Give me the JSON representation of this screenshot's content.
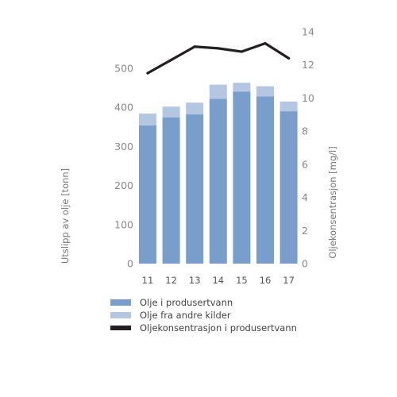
{
  "chart_data": {
    "type": "bar",
    "categories": [
      "11",
      "12",
      "13",
      "14",
      "15",
      "16",
      "17"
    ],
    "series": [
      {
        "name": "Olje i produsertvann",
        "kind": "bar",
        "axis": "left",
        "color": "#7a9ecb",
        "values": [
          354,
          374,
          382,
          422,
          440,
          428,
          390
        ]
      },
      {
        "name": "Olje fra andre kilder",
        "kind": "bar",
        "axis": "left",
        "color": "#b3c6e2",
        "values": [
          30,
          28,
          30,
          36,
          23,
          26,
          25
        ]
      },
      {
        "name": "Oljekonsentrasjon i produsertvann",
        "kind": "line",
        "axis": "right",
        "color": "#231f20",
        "values": [
          11.5,
          12.3,
          13.1,
          13.0,
          12.8,
          13.3,
          12.4
        ]
      }
    ],
    "ylabel": "Utslipp av olje [tonn]",
    "ylabel_right": "Oljekonsentrasjon [mg/l]",
    "ylim": [
      0,
      500
    ],
    "ylim_right": [
      0,
      14
    ],
    "yticks": [
      0,
      100,
      200,
      300,
      400,
      500
    ],
    "yticks_right": [
      0,
      2,
      4,
      6,
      8,
      10,
      12,
      14
    ],
    "grid": false,
    "legend_position": "bottom-left"
  }
}
